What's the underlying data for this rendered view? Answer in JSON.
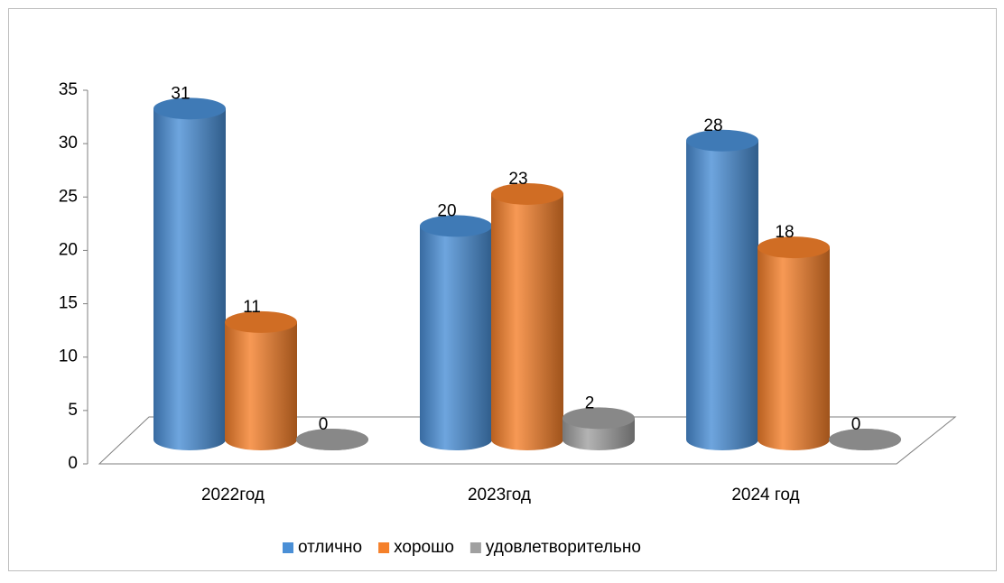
{
  "chart_data": {
    "type": "bar",
    "categories": [
      "2022год",
      "2023год",
      "2024 год"
    ],
    "series": [
      {
        "name": "отлично",
        "color": "#4a8fd6",
        "values": [
          31,
          20,
          28
        ]
      },
      {
        "name": "хорошо",
        "color": "#f5802a",
        "values": [
          11,
          23,
          18
        ]
      },
      {
        "name": "удовлетворительно",
        "color": "#a0a0a0",
        "values": [
          0,
          2,
          0
        ]
      }
    ],
    "ylim": [
      0,
      35
    ],
    "yticks": [
      0,
      5,
      10,
      15,
      20,
      25,
      30,
      35
    ],
    "legend": "bottom"
  }
}
